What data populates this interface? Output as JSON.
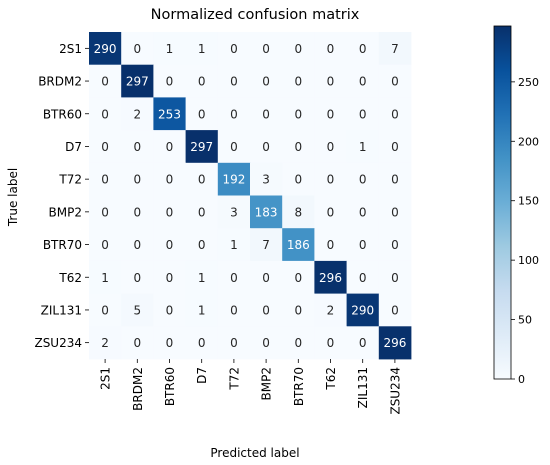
{
  "chart_data": {
    "type": "heatmap",
    "title": "Normalized confusion matrix",
    "xlabel": "Predicted label",
    "ylabel": "True label",
    "x_categories": [
      "2S1",
      "BRDM2",
      "BTR60",
      "D7",
      "T72",
      "BMP2",
      "BTR70",
      "T62",
      "ZIL131",
      "ZSU234"
    ],
    "y_categories": [
      "2S1",
      "BRDM2",
      "BTR60",
      "D7",
      "T72",
      "BMP2",
      "BTR70",
      "T62",
      "ZIL131",
      "ZSU234"
    ],
    "values": [
      [
        290,
        0,
        1,
        1,
        0,
        0,
        0,
        0,
        0,
        7
      ],
      [
        0,
        297,
        0,
        0,
        0,
        0,
        0,
        0,
        0,
        0
      ],
      [
        0,
        2,
        253,
        0,
        0,
        0,
        0,
        0,
        0,
        0
      ],
      [
        0,
        0,
        0,
        297,
        0,
        0,
        0,
        0,
        1,
        0
      ],
      [
        0,
        0,
        0,
        0,
        192,
        3,
        0,
        0,
        0,
        0
      ],
      [
        0,
        0,
        0,
        0,
        3,
        183,
        8,
        0,
        0,
        0
      ],
      [
        0,
        0,
        0,
        0,
        1,
        7,
        186,
        0,
        0,
        0
      ],
      [
        1,
        0,
        0,
        1,
        0,
        0,
        0,
        296,
        0,
        0
      ],
      [
        0,
        5,
        0,
        1,
        0,
        0,
        0,
        2,
        290,
        0
      ],
      [
        2,
        0,
        0,
        0,
        0,
        0,
        0,
        0,
        0,
        296
      ]
    ],
    "colormap": "Blues",
    "colorbar": {
      "range": [
        0,
        297
      ],
      "ticks": [
        0,
        50,
        100,
        150,
        200,
        250
      ]
    },
    "grid": false,
    "legend": "colorbar right"
  }
}
